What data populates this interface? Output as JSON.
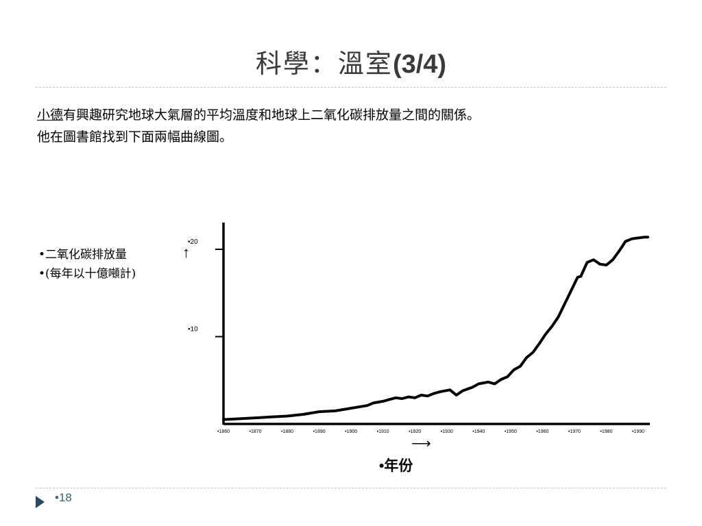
{
  "slide": {
    "title_text": "科學：溫室",
    "title_num": "(3/4)",
    "intro_name": "小德",
    "intro_line1_rest": "有興趣研究地球大氣層的平均溫度和地球上二氧化碳排放量之間的關係。",
    "intro_line2": "他在圖書館找到下面兩幅曲線圖。",
    "page_number": "•18",
    "y_label_line1": "•二氧化碳排放量",
    "y_label_line2": "•(每年以十億噸計)",
    "x_label": "•年份",
    "y_arrow": "↑",
    "x_arrow": "⟶"
  },
  "chart_data": {
    "type": "line",
    "ylim": [
      0,
      22
    ],
    "xlim": [
      1860,
      1995
    ],
    "yticks": [
      {
        "value": 10,
        "label": "•10"
      },
      {
        "value": 20,
        "label": "•20"
      }
    ],
    "xticks": [
      {
        "value": 1860,
        "label": "•1860"
      },
      {
        "value": 1870,
        "label": "•1870"
      },
      {
        "value": 1880,
        "label": "•1880"
      },
      {
        "value": 1890,
        "label": "•1890"
      },
      {
        "value": 1900,
        "label": "•1900"
      },
      {
        "value": 1910,
        "label": "•1910"
      },
      {
        "value": 1920,
        "label": "•1920"
      },
      {
        "value": 1930,
        "label": "•1930"
      },
      {
        "value": 1940,
        "label": "•1940"
      },
      {
        "value": 1950,
        "label": "•1950"
      },
      {
        "value": 1960,
        "label": "•1960"
      },
      {
        "value": 1970,
        "label": "•1970"
      },
      {
        "value": 1980,
        "label": "•1980"
      },
      {
        "value": 1990,
        "label": "•1990"
      }
    ],
    "series": [
      {
        "x": [
          1860,
          1865,
          1870,
          1875,
          1880,
          1885,
          1890,
          1895,
          1900,
          1905,
          1907,
          1910,
          1912,
          1914,
          1916,
          1918,
          1920,
          1922,
          1924,
          1926,
          1928,
          1931,
          1933,
          1935,
          1938,
          1940,
          1943,
          1945,
          1947,
          1949,
          1951,
          1953,
          1955,
          1957,
          1959,
          1961,
          1963,
          1965,
          1967,
          1969,
          1971,
          1972,
          1974,
          1976,
          1978,
          1980,
          1982,
          1984,
          1986,
          1988,
          1990,
          1992,
          1993
        ],
        "y": [
          0.5,
          0.6,
          0.7,
          0.8,
          0.9,
          1.1,
          1.4,
          1.5,
          1.8,
          2.1,
          2.4,
          2.6,
          2.8,
          3.0,
          2.9,
          3.1,
          3.0,
          3.3,
          3.2,
          3.5,
          3.7,
          3.9,
          3.3,
          3.8,
          4.2,
          4.6,
          4.8,
          4.6,
          5.1,
          5.4,
          6.2,
          6.6,
          7.6,
          8.2,
          9.2,
          10.3,
          11.2,
          12.3,
          13.8,
          15.3,
          16.8,
          16.9,
          18.5,
          18.8,
          18.3,
          18.2,
          18.8,
          19.8,
          20.9,
          21.2,
          21.3,
          21.4,
          21.4
        ]
      }
    ]
  }
}
